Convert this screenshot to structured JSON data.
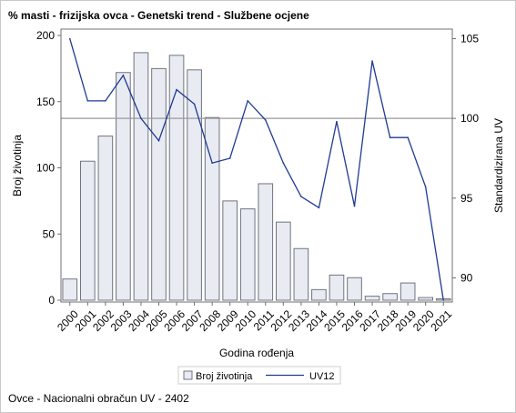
{
  "title": "% masti - frizijska ovca - Genetski trend - Službene ocjene",
  "footnote": "Ovce - Nacionalni obračun UV - 2402",
  "chart_data": {
    "type": "bar",
    "title": "% masti - frizijska ovca - Genetski trend - Službene ocjene",
    "xlabel": "Godina rođenja",
    "ylabel": "Broj životinja",
    "y2label": "Standardizirana UV",
    "categories": [
      "2000",
      "2001",
      "2002",
      "2003",
      "2004",
      "2005",
      "2006",
      "2007",
      "2008",
      "2009",
      "2010",
      "2011",
      "2012",
      "2013",
      "2014",
      "2015",
      "2016",
      "2017",
      "2018",
      "2019",
      "2020",
      "2021"
    ],
    "ylim": [
      0,
      200
    ],
    "yticks": [
      0,
      50,
      100,
      150,
      200
    ],
    "y2lim": [
      88.6,
      105.2
    ],
    "y2ticks": [
      90,
      95,
      100,
      105
    ],
    "reference_line_y2": 100,
    "grid": false,
    "legend_position": "bottom-center",
    "series": [
      {
        "name": "Broj životinja",
        "type": "bar",
        "axis": "left",
        "color": "#e9ebf2",
        "values": [
          16,
          105,
          124,
          172,
          187,
          175,
          185,
          174,
          138,
          75,
          69,
          88,
          59,
          39,
          8,
          19,
          17,
          3,
          5,
          13,
          2,
          1
        ]
      },
      {
        "name": "UV12",
        "type": "line",
        "axis": "right",
        "color": "#1f3a93",
        "values": [
          105.0,
          101.1,
          101.1,
          102.7,
          100.0,
          98.6,
          101.8,
          100.9,
          97.2,
          97.5,
          101.1,
          99.9,
          97.2,
          95.1,
          94.4,
          99.8,
          94.5,
          103.6,
          98.8,
          98.8,
          95.7,
          88.6
        ]
      }
    ]
  }
}
